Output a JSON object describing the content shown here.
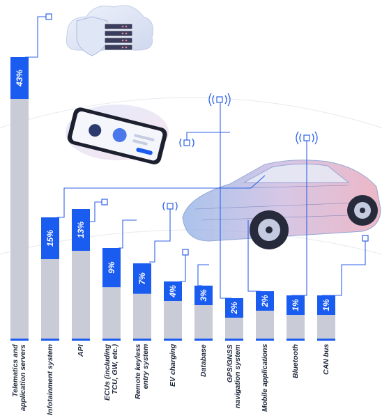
{
  "chart_data": {
    "type": "bar",
    "categories": [
      "Telematics and\napplication servers",
      "Infotainment system",
      "API",
      "ECUs (including\nTCU, GW, etc.)",
      "Remote keyless\nentry system",
      "EV charging",
      "Database",
      "GPS/GNSS\nnavigation system",
      "Mobile applications",
      "Bluetooth",
      "CAN bus"
    ],
    "values": [
      43,
      15,
      13,
      9,
      7,
      4,
      3,
      2,
      2,
      1,
      1
    ],
    "value_labels": [
      "43%",
      "15%",
      "13%",
      "9%",
      "7%",
      "4%",
      "3%",
      "2%",
      "2%",
      "1%",
      "1%"
    ],
    "title": "",
    "xlabel": "",
    "ylabel": "",
    "ylim": [
      0,
      100
    ],
    "grid": false,
    "legend": "none"
  },
  "colors": {
    "highlight": "#1a5cf0",
    "remainder": "#c9ccd6",
    "connector": "#2f62e8",
    "label": "#1f2a3c"
  },
  "icons": [
    "cloud-server-icon",
    "smartphone-icon",
    "car-icon",
    "wireless-signal-icon",
    "connector-node-icon"
  ]
}
